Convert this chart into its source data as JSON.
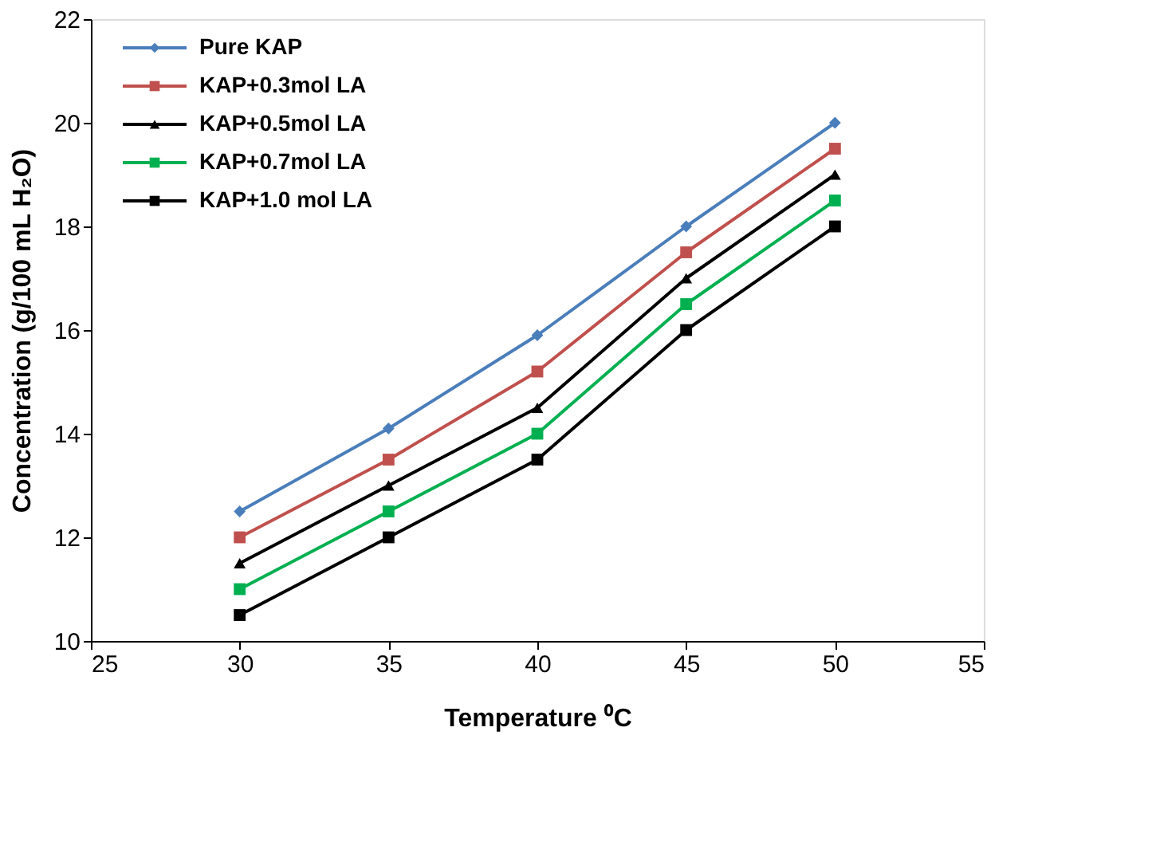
{
  "chart_data": {
    "type": "line",
    "xlabel": "Temperature ⁰C",
    "ylabel": "Concentration (g/100 mL H₂O)",
    "x": [
      30,
      35,
      40,
      45,
      50
    ],
    "xlim": [
      25,
      55
    ],
    "xticks": [
      25,
      30,
      35,
      40,
      45,
      50,
      55
    ],
    "ylim": [
      10,
      22
    ],
    "yticks": [
      10,
      12,
      14,
      16,
      18,
      20,
      22
    ],
    "grid": false,
    "legend": "top left",
    "line_style": "solid",
    "series": [
      {
        "name": "Pure KAP",
        "color": "#4a7ebb",
        "marker": "diamond",
        "values": [
          12.5,
          14.1,
          15.9,
          18.0,
          20.0
        ]
      },
      {
        "name": "KAP+0.3mol LA",
        "color": "#c0504d",
        "marker": "square",
        "values": [
          12.0,
          13.5,
          15.2,
          17.5,
          19.5
        ]
      },
      {
        "name": "KAP+0.5mol LA",
        "color": "#000000",
        "marker": "triangle",
        "values": [
          11.5,
          13.0,
          14.5,
          17.0,
          19.0
        ]
      },
      {
        "name": "KAP+0.7mol LA",
        "color": "#00b050",
        "marker": "square",
        "values": [
          11.0,
          12.5,
          14.0,
          16.5,
          18.5
        ]
      },
      {
        "name": "KAP+1.0 mol LA",
        "color": "#000000",
        "marker": "square",
        "values": [
          10.5,
          12.0,
          13.5,
          16.0,
          18.0
        ]
      }
    ]
  }
}
